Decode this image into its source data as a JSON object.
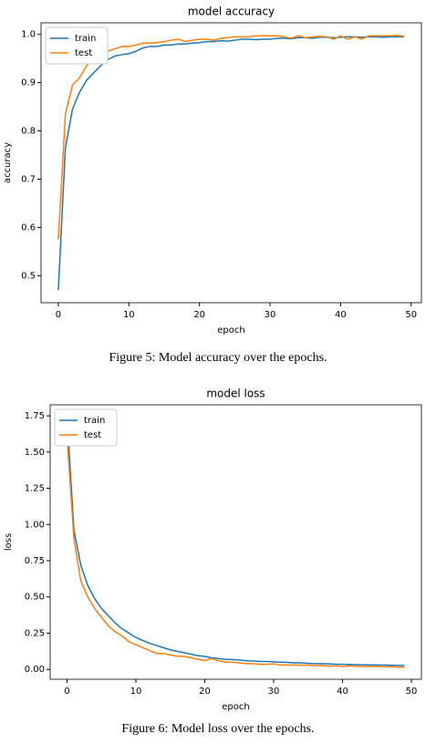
{
  "chart_data": [
    {
      "type": "line",
      "title": "model accuracy",
      "xlabel": "epoch",
      "ylabel": "accuracy",
      "caption": "Figure 5: Model accuracy over the epochs.",
      "x": [
        0,
        1,
        2,
        3,
        4,
        5,
        6,
        7,
        8,
        9,
        10,
        11,
        12,
        13,
        14,
        15,
        16,
        17,
        18,
        19,
        20,
        21,
        22,
        23,
        24,
        25,
        26,
        27,
        28,
        29,
        30,
        31,
        32,
        33,
        34,
        35,
        36,
        37,
        38,
        39,
        40,
        41,
        42,
        43,
        44,
        45,
        46,
        47,
        48,
        49
      ],
      "series": [
        {
          "name": "train",
          "color": "#1f77b4",
          "values": [
            0.47,
            0.765,
            0.845,
            0.88,
            0.905,
            0.92,
            0.935,
            0.948,
            0.955,
            0.958,
            0.96,
            0.965,
            0.972,
            0.975,
            0.975,
            0.978,
            0.978,
            0.98,
            0.98,
            0.982,
            0.983,
            0.985,
            0.985,
            0.987,
            0.986,
            0.988,
            0.99,
            0.99,
            0.989,
            0.99,
            0.99,
            0.992,
            0.992,
            0.991,
            0.993,
            0.993,
            0.992,
            0.994,
            0.994,
            0.993,
            0.994,
            0.995,
            0.995,
            0.994,
            0.995,
            0.995,
            0.994,
            0.995,
            0.995,
            0.995
          ]
        },
        {
          "name": "test",
          "color": "#ff7f0e",
          "values": [
            0.575,
            0.835,
            0.895,
            0.91,
            0.935,
            0.955,
            0.96,
            0.965,
            0.97,
            0.975,
            0.975,
            0.978,
            0.982,
            0.982,
            0.983,
            0.985,
            0.988,
            0.99,
            0.985,
            0.988,
            0.99,
            0.99,
            0.988,
            0.992,
            0.993,
            0.995,
            0.995,
            0.995,
            0.997,
            0.997,
            0.997,
            0.997,
            0.995,
            0.992,
            0.997,
            0.993,
            0.995,
            0.996,
            0.995,
            0.99,
            0.997,
            0.99,
            0.995,
            0.99,
            0.997,
            0.997,
            0.997,
            0.997,
            0.998,
            0.996
          ]
        }
      ],
      "xlim": [
        -2.45,
        51.45
      ],
      "xticks": [
        0,
        10,
        20,
        30,
        40,
        50
      ],
      "ylim": [
        0.444,
        1.024
      ],
      "yticks": [
        0.5,
        0.6,
        0.7,
        0.8,
        0.9,
        {
          "value": 1,
          "label": "1.0"
        }
      ],
      "legend": "upper left"
    },
    {
      "type": "line",
      "title": "model loss",
      "xlabel": "epoch",
      "ylabel": "loss",
      "caption": "Figure 6: Model loss over the epochs.",
      "x": [
        0,
        1,
        2,
        3,
        4,
        5,
        6,
        7,
        8,
        9,
        10,
        11,
        12,
        13,
        14,
        15,
        16,
        17,
        18,
        19,
        20,
        21,
        22,
        23,
        24,
        25,
        26,
        27,
        28,
        29,
        30,
        31,
        32,
        33,
        34,
        35,
        36,
        37,
        38,
        39,
        40,
        41,
        42,
        43,
        44,
        45,
        46,
        47,
        48,
        49
      ],
      "series": [
        {
          "name": "train",
          "color": "#1f77b4",
          "values": [
            1.74,
            0.96,
            0.72,
            0.58,
            0.49,
            0.42,
            0.37,
            0.32,
            0.28,
            0.25,
            0.22,
            0.2,
            0.18,
            0.165,
            0.15,
            0.135,
            0.125,
            0.115,
            0.105,
            0.095,
            0.09,
            0.08,
            0.075,
            0.07,
            0.068,
            0.065,
            0.06,
            0.058,
            0.055,
            0.055,
            0.052,
            0.05,
            0.048,
            0.045,
            0.045,
            0.042,
            0.04,
            0.04,
            0.038,
            0.036,
            0.035,
            0.034,
            0.033,
            0.032,
            0.031,
            0.03,
            0.03,
            0.029,
            0.028,
            0.027
          ]
        },
        {
          "name": "test",
          "color": "#ff7f0e",
          "values": [
            1.6,
            0.9,
            0.61,
            0.5,
            0.42,
            0.36,
            0.3,
            0.26,
            0.23,
            0.19,
            0.17,
            0.15,
            0.13,
            0.11,
            0.11,
            0.1,
            0.09,
            0.09,
            0.08,
            0.07,
            0.06,
            0.075,
            0.06,
            0.05,
            0.05,
            0.045,
            0.04,
            0.04,
            0.035,
            0.035,
            0.038,
            0.03,
            0.03,
            0.03,
            0.028,
            0.03,
            0.025,
            0.028,
            0.022,
            0.025,
            0.02,
            0.025,
            0.022,
            0.02,
            0.02,
            0.02,
            0.018,
            0.02,
            0.015,
            0.015
          ]
        }
      ],
      "xlim": [
        -2.45,
        51.45
      ],
      "xticks": [
        0,
        10,
        20,
        30,
        40,
        50
      ],
      "ylim": [
        -0.068,
        1.826
      ],
      "yticks": [
        {
          "value": 0,
          "label": "0.00"
        },
        0.25,
        {
          "value": 0.5,
          "label": "0.50"
        },
        0.75,
        {
          "value": 1,
          "label": "1.00"
        },
        1.25,
        {
          "value": 1.5,
          "label": "1.50"
        },
        1.75
      ],
      "legend": "upper left"
    }
  ]
}
